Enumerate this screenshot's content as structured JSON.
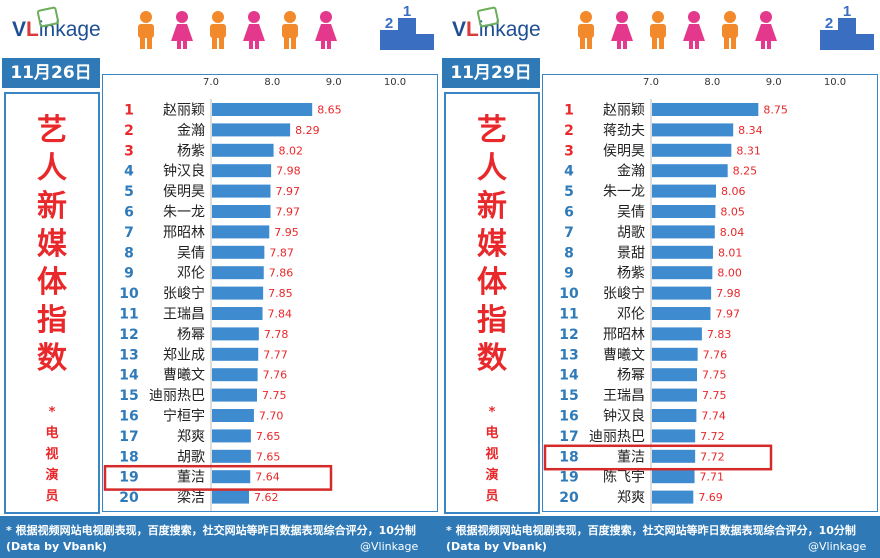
{
  "brand": {
    "v": "V",
    "l": "L",
    "rest": "inkage"
  },
  "footer": {
    "note": "* 根据视频网站电视剧表现，百度搜索，社交网站等昨日数据表现综合评分，10分制",
    "source": "(Data by Vbank)",
    "watermark": "@Vlinkage"
  },
  "colors": {
    "bar": "#3f8bd0",
    "rank": "#e8282b",
    "rank_alt": "#2f7ab8",
    "value": "#e8282b",
    "highlight": "#d42a2a"
  },
  "chart_data": [
    {
      "type": "bar",
      "date": "11月26日",
      "title_chars": [
        "艺",
        "人",
        "新",
        "媒",
        "体",
        "指",
        "数"
      ],
      "subtitle_chars": [
        "*",
        "电",
        "视",
        "演",
        "员"
      ],
      "ticks": [
        "7.0",
        "8.0",
        "9.0",
        "10.0"
      ],
      "xlim": [
        7.0,
        10.0
      ],
      "ranks": [
        "1",
        "2",
        "3",
        "4",
        "5",
        "6",
        "7",
        "8",
        "9",
        "10",
        "11",
        "12",
        "13",
        "14",
        "15",
        "16",
        "17",
        "18",
        "19",
        "20"
      ],
      "categories": [
        "赵丽颖",
        "金瀚",
        "杨紫",
        "钟汉良",
        "侯明昊",
        "朱一龙",
        "邢昭林",
        "吴倩",
        "邓伦",
        "张峻宁",
        "王瑞昌",
        "杨幂",
        "郑业成",
        "曹曦文",
        "迪丽热巴",
        "宁桓宇",
        "郑爽",
        "胡歌",
        "董洁",
        "梁洁"
      ],
      "values": [
        8.65,
        8.29,
        8.02,
        7.98,
        7.97,
        7.97,
        7.95,
        7.87,
        7.86,
        7.85,
        7.84,
        7.78,
        7.77,
        7.76,
        7.75,
        7.7,
        7.65,
        7.65,
        7.64,
        7.62
      ],
      "labels": [
        "8.65",
        "8.29",
        "8.02",
        "7.98",
        "7.97",
        "7.97",
        "7.95",
        "7.87",
        "7.86",
        "7.85",
        "7.84",
        "7.78",
        "7.77",
        "7.76",
        "7.75",
        "7.70",
        "7.65",
        "7.65",
        "7.64",
        "7.62"
      ],
      "highlight_index": 18
    },
    {
      "type": "bar",
      "date": "11月29日",
      "title_chars": [
        "艺",
        "人",
        "新",
        "媒",
        "体",
        "指",
        "数"
      ],
      "subtitle_chars": [
        "*",
        "电",
        "视",
        "演",
        "员"
      ],
      "ticks": [
        "7.0",
        "8.0",
        "9.0",
        "10.0"
      ],
      "xlim": [
        7.0,
        10.0
      ],
      "ranks": [
        "1",
        "2",
        "3",
        "4",
        "5",
        "6",
        "7",
        "8",
        "9",
        "10",
        "11",
        "12",
        "13",
        "14",
        "15",
        "16",
        "17",
        "18",
        "19",
        "20"
      ],
      "categories": [
        "赵丽颖",
        "蒋劲夫",
        "侯明昊",
        "金瀚",
        "朱一龙",
        "吴倩",
        "胡歌",
        "景甜",
        "杨紫",
        "张峻宁",
        "邓伦",
        "邢昭林",
        "曹曦文",
        "杨幂",
        "王瑞昌",
        "钟汉良",
        "迪丽热巴",
        "董洁",
        "陈飞宇",
        "郑爽"
      ],
      "values": [
        8.75,
        8.34,
        8.31,
        8.25,
        8.06,
        8.05,
        8.04,
        8.01,
        8.0,
        7.98,
        7.97,
        7.83,
        7.76,
        7.75,
        7.75,
        7.74,
        7.72,
        7.72,
        7.71,
        7.69
      ],
      "labels": [
        "8.75",
        "8.34",
        "8.31",
        "8.25",
        "8.06",
        "8.05",
        "8.04",
        "8.01",
        "8.00",
        "7.98",
        "7.97",
        "7.83",
        "7.76",
        "7.75",
        "7.75",
        "7.74",
        "7.72",
        "7.72",
        "7.71",
        "7.69"
      ],
      "highlight_index": 17
    }
  ]
}
